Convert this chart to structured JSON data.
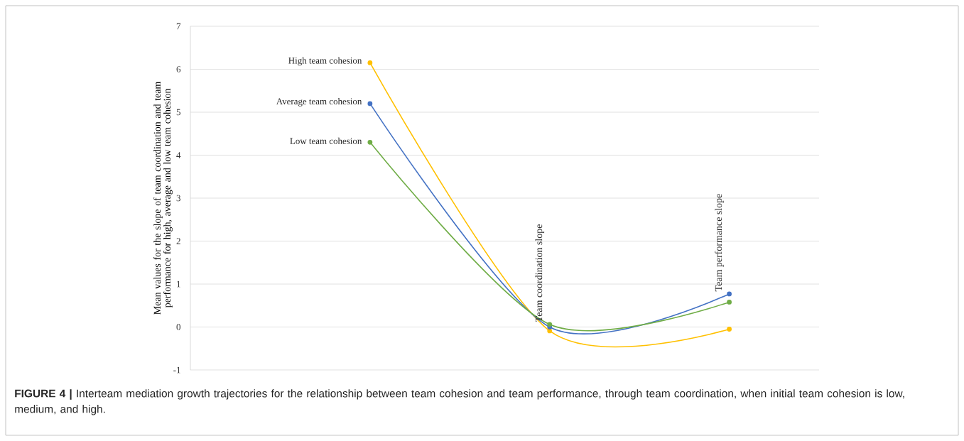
{
  "chart_data": {
    "type": "line",
    "ylabel": "Mean values for the slope of team coordination and team performance for high, average and low team cohesion",
    "categories": [
      null,
      "Team coordination slope",
      "Team performance slope"
    ],
    "series": [
      {
        "name": "High team cohesion",
        "color": "#ffc000",
        "values": [
          6.15,
          -0.09,
          -0.05
        ]
      },
      {
        "name": "Average team cohesion",
        "color": "#4472c4",
        "values": [
          5.2,
          0.0,
          0.77
        ]
      },
      {
        "name": "Low team cohesion",
        "color": "#70ad47",
        "values": [
          4.3,
          0.06,
          0.58
        ]
      }
    ],
    "ylim": [
      -1,
      7
    ],
    "yticks": [
      -1,
      0,
      1,
      2,
      3,
      4,
      5,
      6,
      7
    ],
    "grid": "y",
    "marker": "circle",
    "line_style": "solid",
    "annotations": [
      "**FIGURE 4 |** Interteam mediation growth trajectories for the relationship between team cohesion and team performance, through team coordination, when initial team cohesion is low, medium, and high."
    ]
  }
}
